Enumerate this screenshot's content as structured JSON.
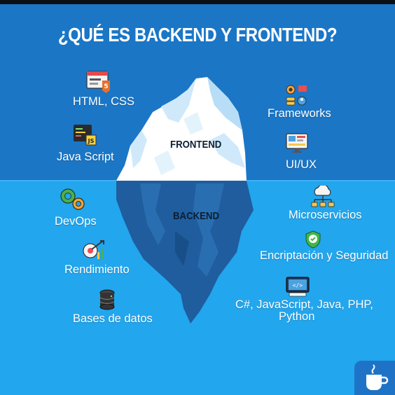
{
  "title": "¿QUÉ ES BACKEND Y FRONTEND?",
  "zones": {
    "frontend": "FRONTEND",
    "backend": "BACKEND"
  },
  "frontend_items": [
    {
      "label": "HTML, CSS",
      "icon": "code-window-icon"
    },
    {
      "label": "Java Script",
      "icon": "js-file-icon"
    },
    {
      "label": "Frameworks",
      "icon": "frameworks-icon"
    },
    {
      "label": "UI/UX",
      "icon": "ui-ux-monitor-icon"
    }
  ],
  "backend_items": [
    {
      "label": "DevOps",
      "icon": "gears-icon"
    },
    {
      "label": "Rendimiento",
      "icon": "performance-icon"
    },
    {
      "label": "Bases de datos",
      "icon": "database-icon"
    },
    {
      "label": "Microservicios",
      "icon": "cloud-network-icon"
    },
    {
      "label": "Encriptación y Seguridad",
      "icon": "shield-check-icon"
    },
    {
      "label": "C#, JavaScript, Java, PHP,",
      "label_line2": "Python",
      "icon": "code-monitor-icon"
    }
  ],
  "colors": {
    "sky": "#1b76c6",
    "sea": "#22a6ee",
    "ice": "#ffffff",
    "ice_shade": "#cfe9fb",
    "underwater_ice": "#1f5d9e"
  },
  "logo": {
    "icon": "coffee-cup-icon"
  }
}
